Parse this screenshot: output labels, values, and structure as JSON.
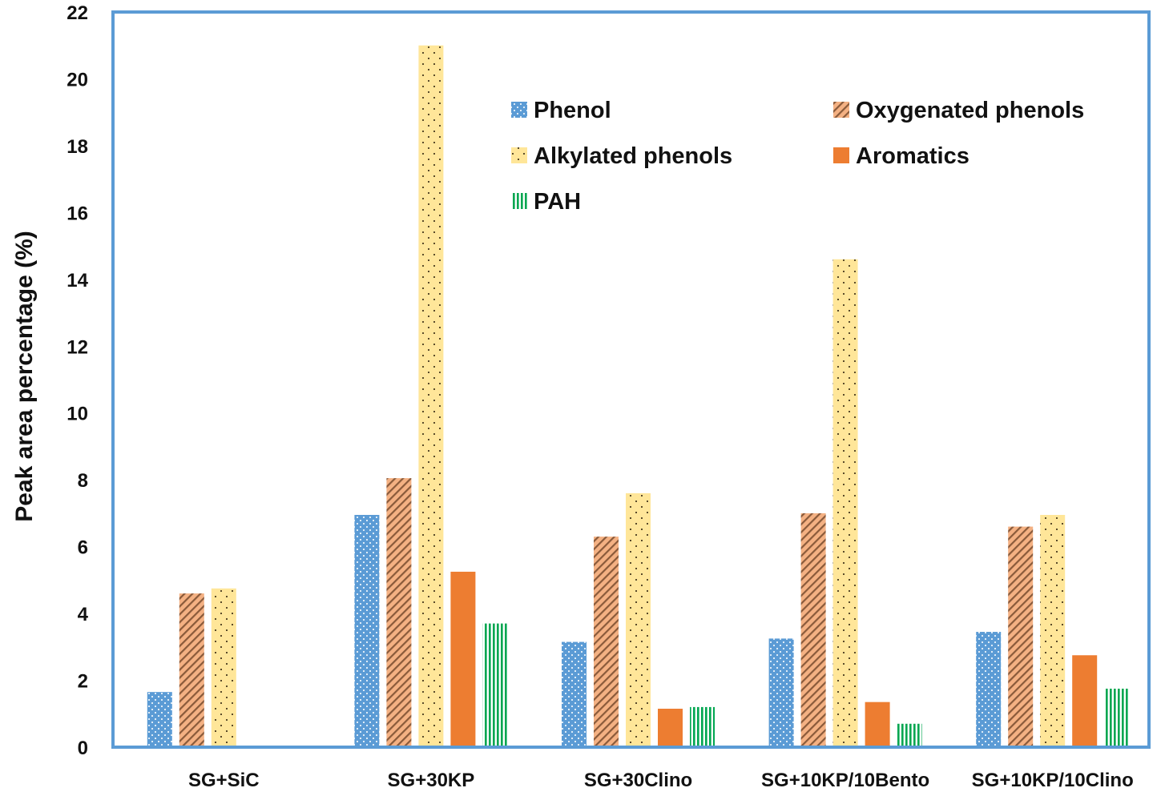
{
  "chart_data": {
    "type": "bar",
    "title": "",
    "xlabel": "",
    "ylabel": "Peak area percentage (%)",
    "ylim": [
      0,
      22
    ],
    "yticks": [
      0,
      2,
      4,
      6,
      8,
      10,
      12,
      14,
      16,
      18,
      20,
      22
    ],
    "grid": false,
    "legend_position": "top-right",
    "categories": [
      "SG+SiC",
      "SG+30KP",
      "SG+30Clino",
      "SG+10KP/10Bento",
      "SG+10KP/10Clino"
    ],
    "series": [
      {
        "name": "Phenol",
        "color": "#5B9BD5",
        "pattern": "dots-blue",
        "values": [
          1.65,
          6.95,
          3.15,
          3.25,
          3.45
        ]
      },
      {
        "name": "Oxygenated phenols",
        "color": "#F4B183",
        "pattern": "diag-orange",
        "values": [
          4.6,
          8.05,
          6.3,
          7.0,
          6.6
        ]
      },
      {
        "name": "Alkylated phenols",
        "color": "#FFE699",
        "pattern": "dots-yellow",
        "values": [
          4.75,
          21.0,
          7.6,
          14.6,
          6.95
        ]
      },
      {
        "name": "Aromatics",
        "color": "#ED7D31",
        "pattern": "solid-orange",
        "values": [
          0,
          5.25,
          1.15,
          1.35,
          2.75
        ]
      },
      {
        "name": "PAH",
        "color": "#00B050",
        "pattern": "vert-green",
        "values": [
          0,
          3.7,
          1.2,
          0.7,
          1.75
        ]
      }
    ]
  }
}
